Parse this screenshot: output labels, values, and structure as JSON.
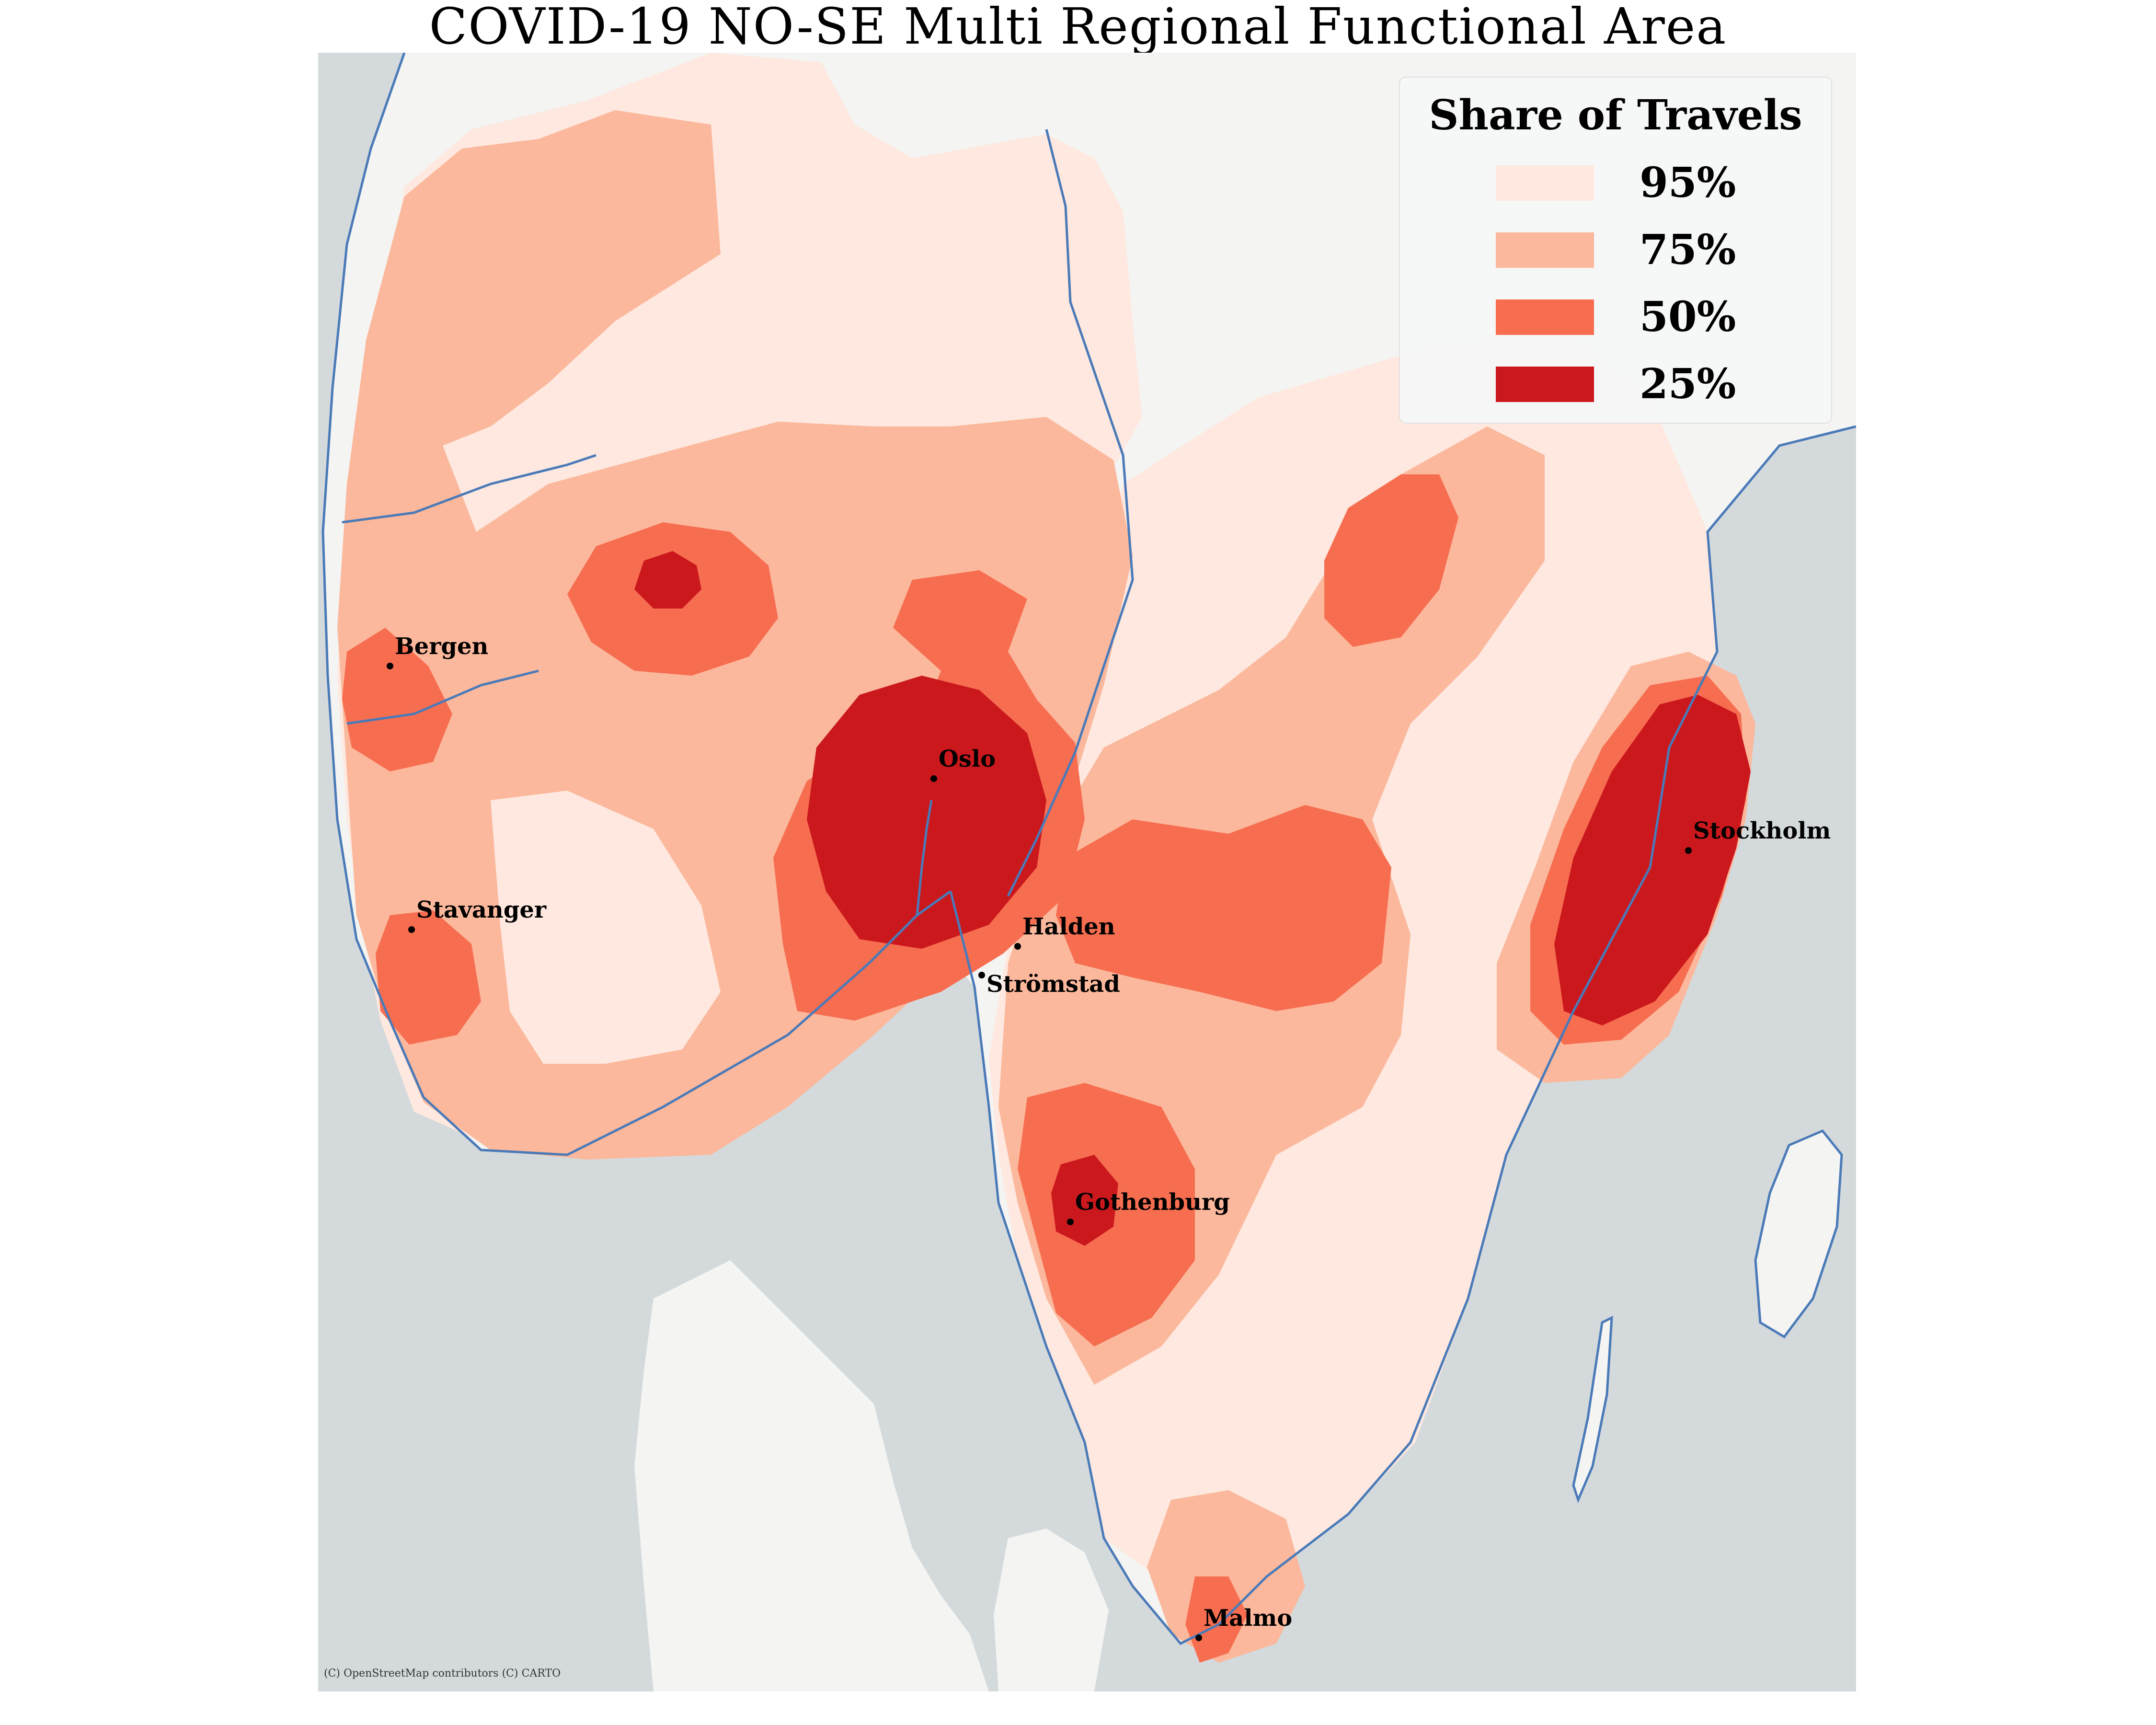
{
  "title": "COVID-19 NO-SE Multi Regional Functional Area",
  "legend": {
    "title": "Share of Travels",
    "entries": [
      {
        "label": "95%",
        "color": "#fee8df"
      },
      {
        "label": "75%",
        "color": "#fbb89c"
      },
      {
        "label": "50%",
        "color": "#f76d50"
      },
      {
        "label": "25%",
        "color": "#cb181d"
      }
    ]
  },
  "cities": [
    {
      "name": "Bergen"
    },
    {
      "name": "Oslo"
    },
    {
      "name": "Stavanger"
    },
    {
      "name": "Halden"
    },
    {
      "name": "Strömstad"
    },
    {
      "name": "Stockholm"
    },
    {
      "name": "Gothenburg"
    },
    {
      "name": "Malmo"
    }
  ],
  "attribution": "(C) OpenStreetMap contributors (C) CARTO",
  "colors": {
    "sea": "#d4dadc",
    "land": "#f4f4f2",
    "coast": "#4a7ab8"
  }
}
